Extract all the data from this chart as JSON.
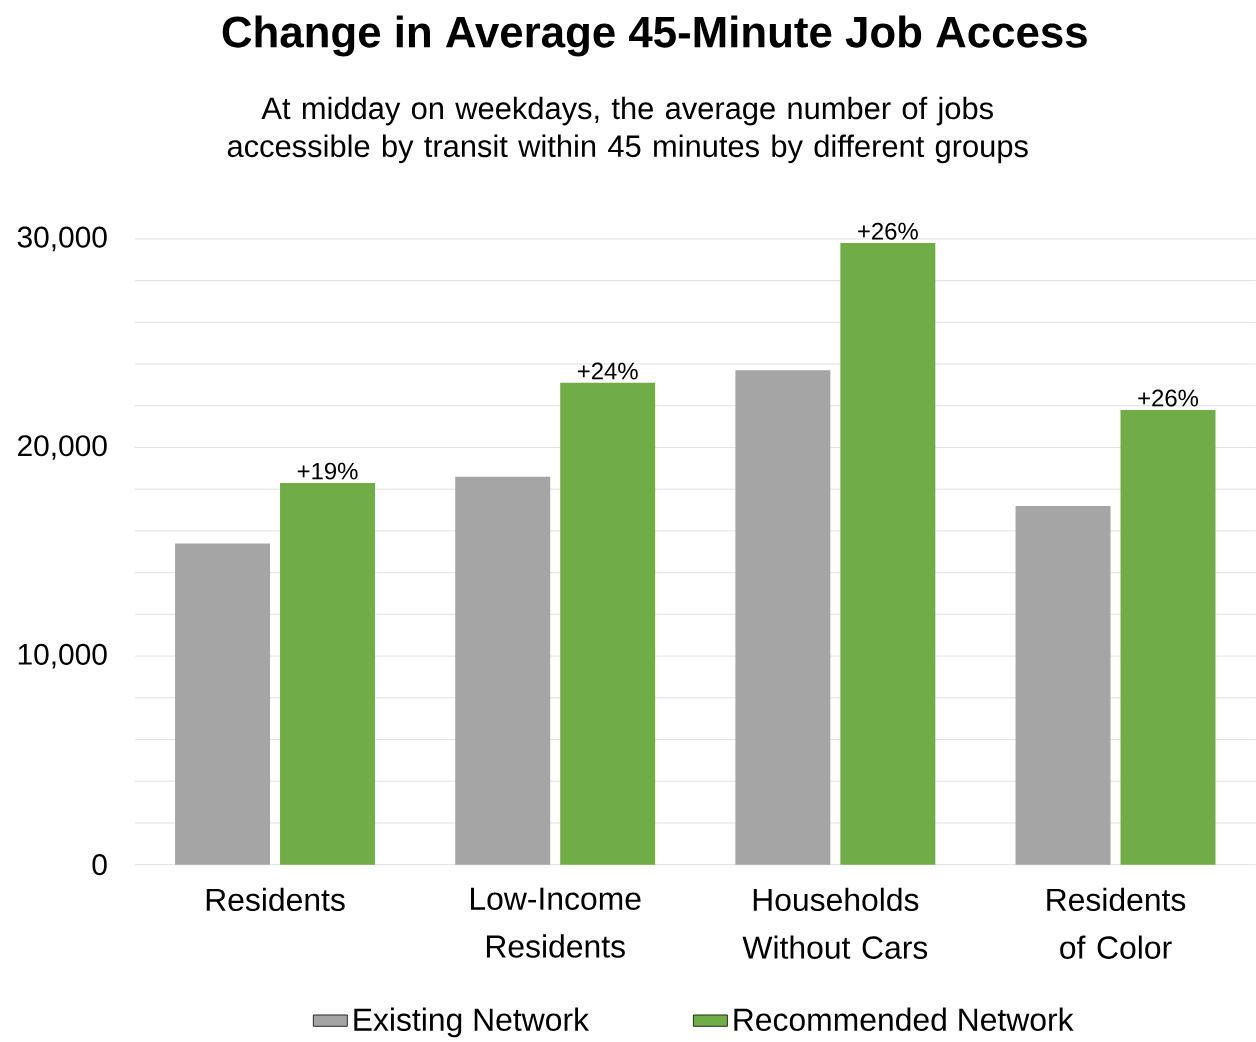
{
  "chart_data": {
    "type": "bar",
    "title": "Change in Average 45-Minute Job Access",
    "subtitle": "At midday on weekdays, the average number of jobs accessible by transit within 45 minutes by different groups",
    "categories": [
      "Residents",
      "Low-Income Residents",
      "Households Without Cars",
      "Residents of Color"
    ],
    "series": [
      {
        "name": "Existing Network",
        "color": "#a5a5a5",
        "values": [
          15400,
          18600,
          23700,
          17200
        ]
      },
      {
        "name": "Recommended Network",
        "color": "#70ad47",
        "values": [
          18300,
          23100,
          29800,
          21800
        ]
      }
    ],
    "annotations": [
      {
        "text": "+19%",
        "x": "Residents",
        "y": 18300
      },
      {
        "text": "+24%",
        "x": "Low-Income Residents",
        "y": 23100
      },
      {
        "text": "+26%",
        "x": "Households Without Cars",
        "y": 29800
      },
      {
        "text": "+26%",
        "x": "Residents of Color",
        "y": 21800
      }
    ],
    "ylim": [
      0,
      30000
    ],
    "yticks": [
      0,
      {
        "value": 2000,
        "label": null
      },
      {
        "value": 4000,
        "label": null
      },
      {
        "value": 6000,
        "label": null
      },
      {
        "value": 8000,
        "label": null
      },
      {
        "value": 10000,
        "label": "10,000"
      },
      {
        "value": 12000,
        "label": null
      },
      {
        "value": 14000,
        "label": null
      },
      {
        "value": 16000,
        "label": null
      },
      {
        "value": 18000,
        "label": null
      },
      {
        "value": 20000,
        "label": "20,000"
      },
      {
        "value": 22000,
        "label": null
      },
      {
        "value": 24000,
        "label": null
      },
      {
        "value": 26000,
        "label": null
      },
      {
        "value": 28000,
        "label": null
      },
      {
        "value": 30000,
        "label": "30,000"
      }
    ],
    "grid": "y",
    "legend": "bottom"
  }
}
